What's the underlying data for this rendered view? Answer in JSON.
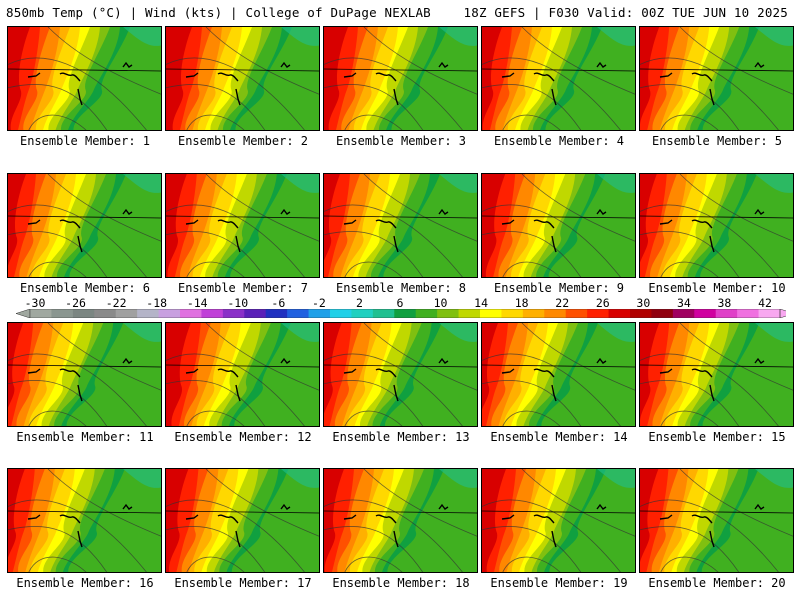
{
  "header": {
    "left": "850mb Temp (°C) | Wind (kts) | College of DuPage NEXLAB",
    "right": "18Z GEFS | F030 Valid: 00Z TUE JUN 10 2025"
  },
  "caption_prefix": "Ensemble Member: ",
  "members": [
    {
      "id": "1",
      "label": "Ensemble Member: 1",
      "warmth": 0.85
    },
    {
      "id": "2",
      "label": "Ensemble Member: 2",
      "warmth": 0.95
    },
    {
      "id": "3",
      "label": "Ensemble Member: 3",
      "warmth": 0.9
    },
    {
      "id": "4",
      "label": "Ensemble Member: 4",
      "warmth": 0.8
    },
    {
      "id": "5",
      "label": "Ensemble Member: 5",
      "warmth": 0.78
    },
    {
      "id": "6",
      "label": "Ensemble Member: 6",
      "warmth": 0.75
    },
    {
      "id": "7",
      "label": "Ensemble Member: 7",
      "warmth": 0.82
    },
    {
      "id": "8",
      "label": "Ensemble Member: 8",
      "warmth": 0.7
    },
    {
      "id": "9",
      "label": "Ensemble Member: 9",
      "warmth": 0.88
    },
    {
      "id": "10",
      "label": "Ensemble Member: 10",
      "warmth": 0.72
    },
    {
      "id": "11",
      "label": "Ensemble Member: 11",
      "warmth": 0.68
    },
    {
      "id": "12",
      "label": "Ensemble Member: 12",
      "warmth": 0.92
    },
    {
      "id": "13",
      "label": "Ensemble Member: 13",
      "warmth": 0.74
    },
    {
      "id": "14",
      "label": "Ensemble Member: 14",
      "warmth": 0.7
    },
    {
      "id": "15",
      "label": "Ensemble Member: 15",
      "warmth": 0.78
    },
    {
      "id": "16",
      "label": "Ensemble Member: 16",
      "warmth": 0.72
    },
    {
      "id": "17",
      "label": "Ensemble Member: 17",
      "warmth": 0.86
    },
    {
      "id": "18",
      "label": "Ensemble Member: 18",
      "warmth": 0.8
    },
    {
      "id": "19",
      "label": "Ensemble Member: 19",
      "warmth": 0.9
    },
    {
      "id": "20",
      "label": "Ensemble Member: 20",
      "warmth": 0.76
    }
  ],
  "colorbar": {
    "tick_labels": [
      "-30",
      "-26",
      "-22",
      "-18",
      "-14",
      "-10",
      "-6",
      "-2",
      "2",
      "6",
      "10",
      "14",
      "18",
      "22",
      "26",
      "30",
      "34",
      "38",
      "42"
    ],
    "colors": [
      "#a0a8a0",
      "#8a9690",
      "#7b8682",
      "#8a8a8a",
      "#a0a0a0",
      "#b4b4c8",
      "#c8a0e0",
      "#e070e0",
      "#c040d8",
      "#8a30c8",
      "#5a20b8",
      "#2030c0",
      "#2060e0",
      "#20a0e8",
      "#20d0e8",
      "#20d0c0",
      "#20c090",
      "#10a040",
      "#40b020",
      "#80c010",
      "#c0d800",
      "#ffff00",
      "#ffd800",
      "#ffb000",
      "#ff8800",
      "#ff5000",
      "#ff2000",
      "#d80000",
      "#b00000",
      "#900010",
      "#a00060",
      "#d000a0",
      "#e040c8",
      "#f070e0",
      "#f8a8f0"
    ]
  },
  "field_colors": {
    "hot": "#d80000",
    "warm1": "#ff2000",
    "warm2": "#ff5000",
    "warm3": "#ff8800",
    "warm4": "#ffb000",
    "yellow": "#ffd800",
    "yellow2": "#ffff00",
    "lime": "#c0d800",
    "green1": "#80c010",
    "green2": "#40b020",
    "green3": "#10a040",
    "teal": "#20c090"
  }
}
